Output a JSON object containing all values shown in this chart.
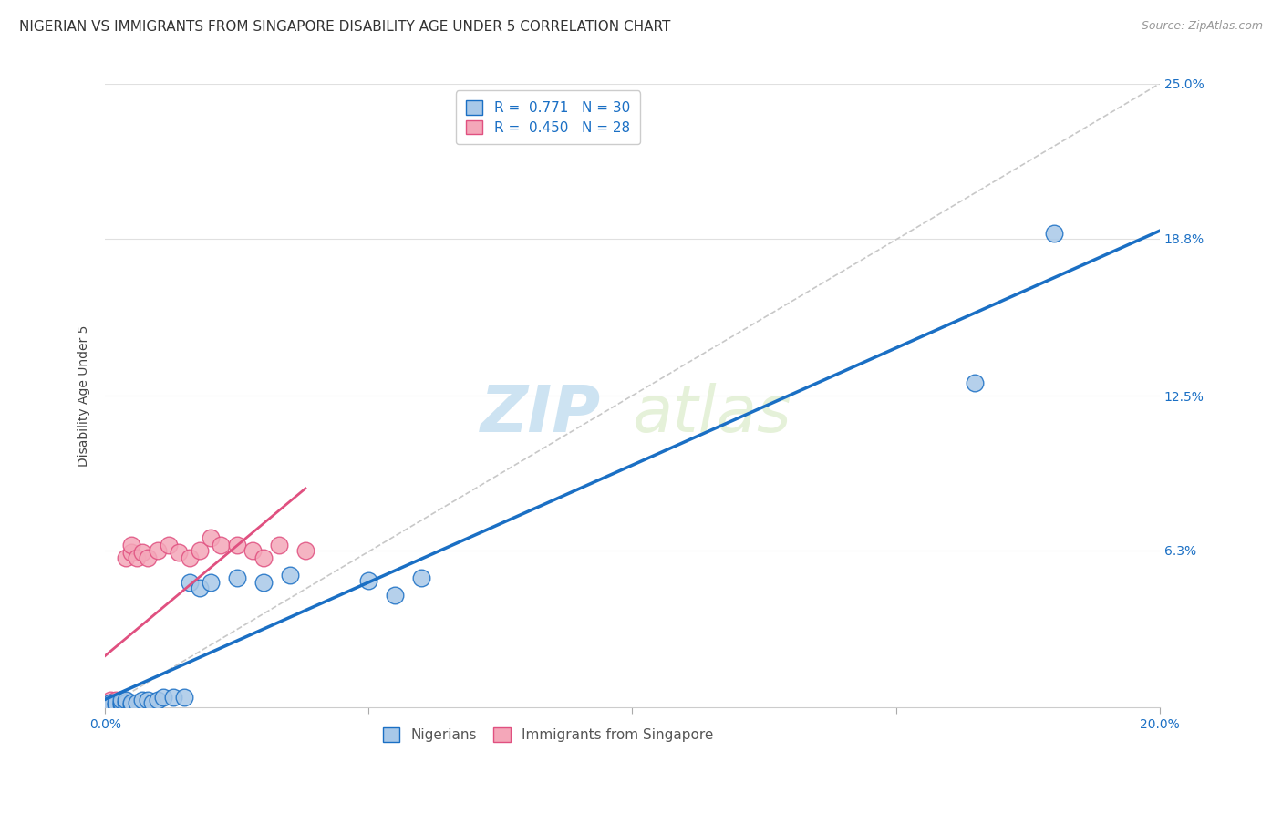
{
  "title": "NIGERIAN VS IMMIGRANTS FROM SINGAPORE DISABILITY AGE UNDER 5 CORRELATION CHART",
  "source": "Source: ZipAtlas.com",
  "ylabel": "Disability Age Under 5",
  "xlim": [
    0.0,
    0.2
  ],
  "ylim": [
    0.0,
    0.25
  ],
  "ytick_labels": [
    "6.3%",
    "12.5%",
    "18.8%",
    "25.0%"
  ],
  "ytick_values": [
    0.063,
    0.125,
    0.188,
    0.25
  ],
  "r_nigerian": 0.771,
  "n_nigerian": 30,
  "r_singapore": 0.45,
  "n_singapore": 28,
  "color_nigerian": "#a8c8e8",
  "color_singapore": "#f4a7b9",
  "line_color_nigerian": "#1a6fc4",
  "line_color_singapore": "#e05080",
  "diagonal_color": "#c8c8c8",
  "watermark_zip": "ZIP",
  "watermark_atlas": "atlas",
  "background_color": "#ffffff",
  "nigerian_x": [
    0.001,
    0.001,
    0.002,
    0.002,
    0.003,
    0.003,
    0.003,
    0.004,
    0.004,
    0.005,
    0.005,
    0.006,
    0.007,
    0.008,
    0.009,
    0.01,
    0.011,
    0.013,
    0.015,
    0.016,
    0.018,
    0.02,
    0.025,
    0.03,
    0.035,
    0.05,
    0.055,
    0.06,
    0.165,
    0.18
  ],
  "nigerian_y": [
    0.001,
    0.002,
    0.001,
    0.002,
    0.001,
    0.002,
    0.003,
    0.002,
    0.003,
    0.001,
    0.002,
    0.002,
    0.003,
    0.003,
    0.002,
    0.003,
    0.004,
    0.004,
    0.004,
    0.05,
    0.048,
    0.05,
    0.052,
    0.05,
    0.053,
    0.051,
    0.045,
    0.052,
    0.13,
    0.19
  ],
  "singapore_x": [
    0.001,
    0.001,
    0.001,
    0.002,
    0.002,
    0.002,
    0.003,
    0.003,
    0.003,
    0.004,
    0.004,
    0.005,
    0.005,
    0.006,
    0.007,
    0.008,
    0.01,
    0.012,
    0.014,
    0.016,
    0.018,
    0.02,
    0.022,
    0.025,
    0.028,
    0.03,
    0.033,
    0.038
  ],
  "singapore_y": [
    0.001,
    0.002,
    0.003,
    0.001,
    0.002,
    0.003,
    0.001,
    0.002,
    0.003,
    0.001,
    0.06,
    0.062,
    0.065,
    0.06,
    0.062,
    0.06,
    0.063,
    0.065,
    0.062,
    0.06,
    0.063,
    0.068,
    0.065,
    0.065,
    0.063,
    0.06,
    0.065,
    0.063
  ],
  "title_fontsize": 11,
  "axis_label_fontsize": 10,
  "tick_fontsize": 10,
  "legend_fontsize": 11,
  "watermark_fontsize": 52
}
